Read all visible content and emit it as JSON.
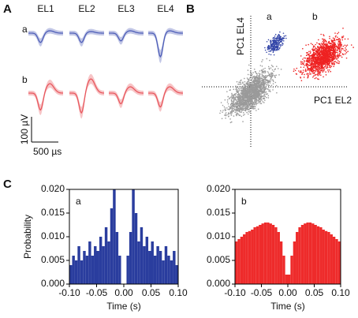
{
  "panels": {
    "a": "A",
    "b": "B",
    "c": "C"
  },
  "waveforms": {
    "electrodes": [
      "EL1",
      "EL2",
      "EL3",
      "EL4"
    ],
    "units": [
      "a",
      "b"
    ],
    "scale_y": "100 µV",
    "scale_x": "500 µs"
  },
  "scatter": {
    "x_label": "PC1 EL2",
    "y_label": "PC1 EL4",
    "clusters": [
      "a",
      "b"
    ]
  },
  "chart_data": [
    {
      "type": "histogram",
      "annotation": "a",
      "color": "#2a3d9e",
      "x_label": "Time (s)",
      "y_label": "Probability",
      "bins": [
        -0.1,
        -0.095,
        -0.09,
        -0.085,
        -0.08,
        -0.075,
        -0.07,
        -0.065,
        -0.06,
        -0.055,
        -0.05,
        -0.045,
        -0.04,
        -0.035,
        -0.03,
        -0.025,
        -0.02,
        -0.015,
        -0.01,
        -0.005,
        0,
        0.005,
        0.01,
        0.015,
        0.02,
        0.025,
        0.03,
        0.035,
        0.04,
        0.045,
        0.05,
        0.055,
        0.06,
        0.065,
        0.07,
        0.075,
        0.08,
        0.085,
        0.09,
        0.095,
        0.1
      ],
      "values": [
        0.004,
        0.006,
        0.005,
        0.008,
        0.005,
        0.007,
        0.006,
        0.009,
        0.006,
        0.008,
        0.007,
        0.01,
        0.008,
        0.012,
        0.009,
        0.016,
        0.02,
        0.011,
        0.006,
        0,
        0,
        0.006,
        0.011,
        0.02,
        0.015,
        0.009,
        0.012,
        0.008,
        0.01,
        0.007,
        0.009,
        0.006,
        0.008,
        0.007,
        0.005,
        0.008,
        0.006,
        0.005,
        0.007,
        0.004
      ],
      "xlim": [
        -0.1,
        0.1
      ],
      "ylim": [
        0,
        0.02
      ],
      "xticks": [
        {
          "value": -0.1,
          "label": "-0.10"
        },
        {
          "value": -0.05,
          "label": "-0.05"
        },
        {
          "value": 0,
          "label": "0.00"
        },
        {
          "value": 0.05,
          "label": "0.05"
        },
        {
          "value": 0.1,
          "label": "0.10"
        }
      ],
      "yticks": [
        {
          "value": 0,
          "label": "0.000"
        },
        {
          "value": 0.005,
          "label": "0.005"
        },
        {
          "value": 0.01,
          "label": "0.010"
        },
        {
          "value": 0.015,
          "label": "0.015"
        },
        {
          "value": 0.02,
          "label": "0.020"
        }
      ]
    },
    {
      "type": "histogram",
      "annotation": "b",
      "color": "#ee2b2b",
      "x_label": "Time (s)",
      "bins": [
        -0.1,
        -0.095,
        -0.09,
        -0.085,
        -0.08,
        -0.075,
        -0.07,
        -0.065,
        -0.06,
        -0.055,
        -0.05,
        -0.045,
        -0.04,
        -0.035,
        -0.03,
        -0.025,
        -0.02,
        -0.015,
        -0.01,
        -0.005,
        0,
        0.005,
        0.01,
        0.015,
        0.02,
        0.025,
        0.03,
        0.035,
        0.04,
        0.045,
        0.05,
        0.055,
        0.06,
        0.065,
        0.07,
        0.075,
        0.08,
        0.085,
        0.09,
        0.095,
        0.1
      ],
      "values": [
        0.009,
        0.0095,
        0.01,
        0.0105,
        0.011,
        0.0112,
        0.0115,
        0.012,
        0.0122,
        0.0125,
        0.0128,
        0.013,
        0.013,
        0.0128,
        0.0125,
        0.012,
        0.011,
        0.009,
        0.006,
        0.002,
        0.002,
        0.006,
        0.009,
        0.011,
        0.012,
        0.0125,
        0.0128,
        0.013,
        0.013,
        0.0128,
        0.0125,
        0.0122,
        0.012,
        0.0115,
        0.0112,
        0.011,
        0.0105,
        0.01,
        0.0095,
        0.009
      ],
      "xlim": [
        -0.1,
        0.1
      ],
      "ylim": [
        0,
        0.02
      ],
      "xticks": [
        {
          "value": -0.1,
          "label": "-0.10"
        },
        {
          "value": -0.05,
          "label": "-0.05"
        },
        {
          "value": 0,
          "label": "0.00"
        },
        {
          "value": 0.05,
          "label": "0.05"
        },
        {
          "value": 0.1,
          "label": "0.10"
        }
      ],
      "yticks": [
        {
          "value": 0,
          "label": "0.000"
        },
        {
          "value": 0.005,
          "label": "0.005"
        },
        {
          "value": 0.01,
          "label": "0.010"
        },
        {
          "value": 0.015,
          "label": "0.015"
        },
        {
          "value": 0.02,
          "label": "0.020"
        }
      ]
    }
  ]
}
